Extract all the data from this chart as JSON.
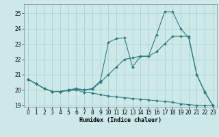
{
  "xlabel": "Humidex (Indice chaleur)",
  "xlim": [
    -0.5,
    23.5
  ],
  "ylim": [
    18.9,
    25.6
  ],
  "yticks": [
    19,
    20,
    21,
    22,
    23,
    24,
    25
  ],
  "xticks": [
    0,
    1,
    2,
    3,
    4,
    5,
    6,
    7,
    8,
    9,
    10,
    11,
    12,
    13,
    14,
    15,
    16,
    17,
    18,
    19,
    20,
    21,
    22,
    23
  ],
  "background_color": "#cce8e8",
  "grid_color": "#aacccc",
  "line_color": "#2e7d7d",
  "line1_y": [
    20.7,
    20.4,
    20.1,
    19.9,
    19.9,
    19.95,
    20.0,
    19.85,
    19.8,
    19.7,
    19.6,
    19.55,
    19.5,
    19.45,
    19.4,
    19.35,
    19.3,
    19.25,
    19.2,
    19.1,
    19.05,
    19.0,
    19.0,
    19.0
  ],
  "line2_y": [
    20.7,
    20.4,
    20.1,
    19.9,
    19.9,
    20.0,
    20.05,
    20.0,
    20.05,
    20.5,
    21.0,
    21.5,
    22.0,
    22.1,
    22.2,
    22.2,
    22.5,
    23.0,
    23.5,
    23.5,
    23.5,
    21.0,
    19.9,
    19.0
  ],
  "line3_y": [
    20.7,
    20.4,
    20.1,
    19.9,
    19.9,
    20.0,
    20.1,
    20.0,
    20.1,
    20.6,
    23.1,
    23.35,
    23.4,
    21.5,
    22.2,
    22.2,
    23.6,
    25.1,
    25.1,
    24.0,
    23.4,
    21.0,
    19.85,
    19.0
  ]
}
